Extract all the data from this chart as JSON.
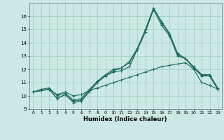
{
  "title": "",
  "xlabel": "Humidex (Indice chaleur)",
  "bg_color": "#cce8e4",
  "line_color": "#1a6b5a",
  "grid_color": "#99ccbb",
  "xlim": [
    -0.5,
    23.5
  ],
  "ylim": [
    9,
    17
  ],
  "yticks": [
    9,
    10,
    11,
    12,
    13,
    14,
    15,
    16
  ],
  "xticks": [
    0,
    1,
    2,
    3,
    4,
    5,
    6,
    7,
    8,
    9,
    10,
    11,
    12,
    13,
    14,
    15,
    16,
    17,
    18,
    19,
    20,
    21,
    22,
    23
  ],
  "line1": [
    10.3,
    10.4,
    10.5,
    9.8,
    10.1,
    9.5,
    9.6,
    10.3,
    11.0,
    11.5,
    11.8,
    11.9,
    12.2,
    13.5,
    14.8,
    16.5,
    15.3,
    14.5,
    13.0,
    12.8,
    12.1,
    11.5,
    11.5,
    10.5
  ],
  "line2": [
    10.3,
    10.4,
    10.5,
    9.8,
    10.1,
    9.6,
    9.7,
    10.4,
    11.1,
    11.5,
    11.9,
    12.1,
    12.5,
    13.5,
    15.0,
    16.6,
    15.5,
    14.6,
    13.1,
    12.8,
    12.1,
    11.6,
    11.5,
    10.5
  ],
  "line3": [
    10.3,
    10.5,
    10.6,
    10.0,
    10.2,
    9.7,
    9.8,
    10.5,
    11.1,
    11.6,
    12.0,
    12.1,
    12.6,
    13.6,
    15.0,
    16.6,
    15.6,
    14.7,
    13.2,
    12.8,
    12.2,
    11.6,
    11.6,
    10.6
  ],
  "line4": [
    10.3,
    10.4,
    10.5,
    10.1,
    10.3,
    10.0,
    10.1,
    10.4,
    10.6,
    10.8,
    11.0,
    11.2,
    11.4,
    11.6,
    11.8,
    12.0,
    12.2,
    12.3,
    12.4,
    12.5,
    12.0,
    11.0,
    10.8,
    10.5
  ]
}
